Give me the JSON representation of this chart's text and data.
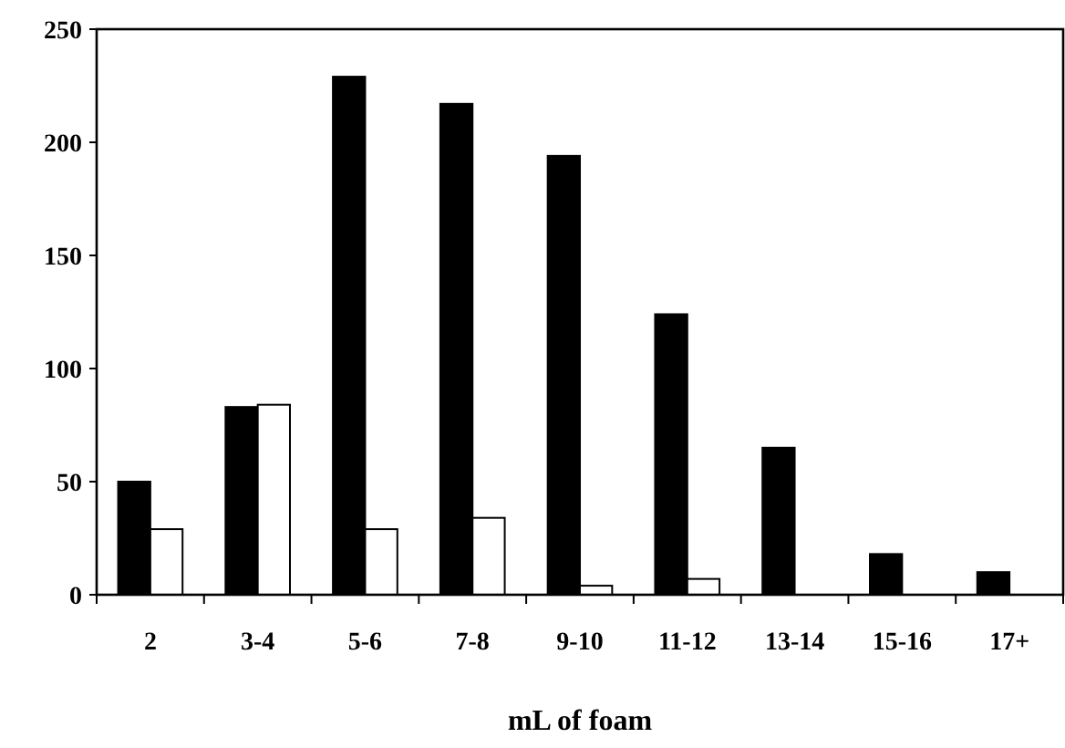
{
  "chart_data": {
    "type": "bar",
    "xlabel": "mL of foam",
    "categories": [
      "2",
      "3-4",
      "5-6",
      "7-8",
      "9-10",
      "11-12",
      "13-14",
      "15-16",
      "17+"
    ],
    "series": [
      {
        "color": "#000000",
        "values": [
          50,
          83,
          229,
          217,
          194,
          124,
          65,
          18,
          10
        ]
      },
      {
        "color": "#ffffff",
        "values": [
          29,
          84,
          29,
          34,
          4,
          7,
          0,
          0,
          0
        ]
      }
    ],
    "ylim": [
      0,
      250
    ],
    "yticks": [
      0,
      50,
      100,
      150,
      200,
      250
    ]
  }
}
